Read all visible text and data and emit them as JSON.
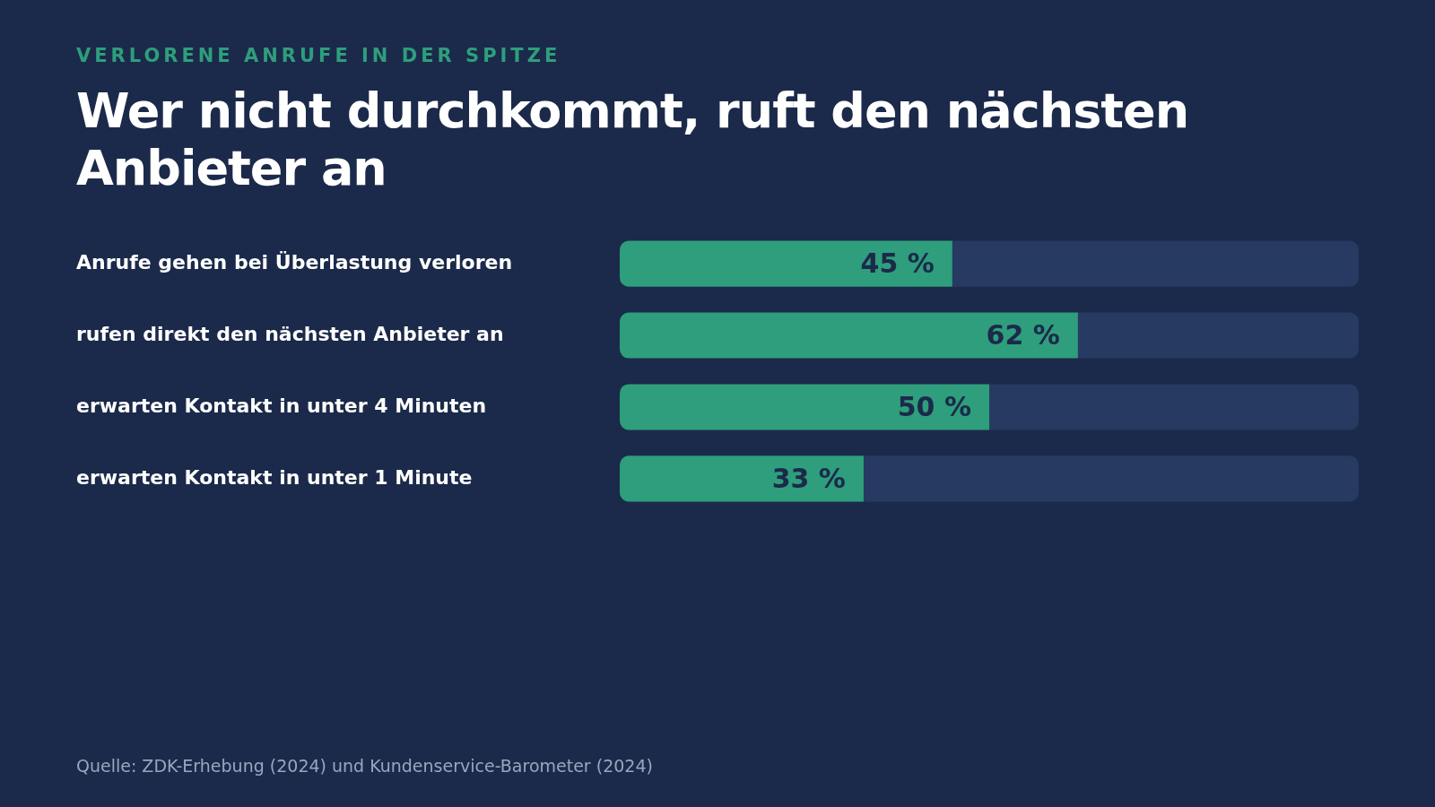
{
  "chart_data": {
    "type": "bar",
    "orientation": "horizontal",
    "stacked": true,
    "subtitle": "VERLORENE ANRUFE IN DER SPITZE",
    "title": "Wer nicht durchkommt, ruft den nächsten Anbieter an",
    "categories": [
      "Anrufe gehen bei Überlastung verloren",
      "rufen direkt den nächsten Anbieter an",
      "erwarten Kontakt in unter 4 Minuten",
      "erwarten Kontakt in unter 1 Minute"
    ],
    "series": [
      {
        "color": "#2e9e7c",
        "values": [
          45,
          62,
          50,
          33
        ],
        "value_labels": [
          "45 %",
          "62 %",
          "50 %",
          "33 %"
        ]
      },
      {
        "color": "#263a62",
        "values": [
          55,
          38,
          50,
          67
        ]
      }
    ],
    "xlim": [
      0,
      100
    ],
    "tick_labels": "y",
    "grid": false,
    "legend": false,
    "annotations": [
      "Quelle: ZDK-Erhebung (2024) und Kundenservice-Barometer (2024)"
    ]
  }
}
